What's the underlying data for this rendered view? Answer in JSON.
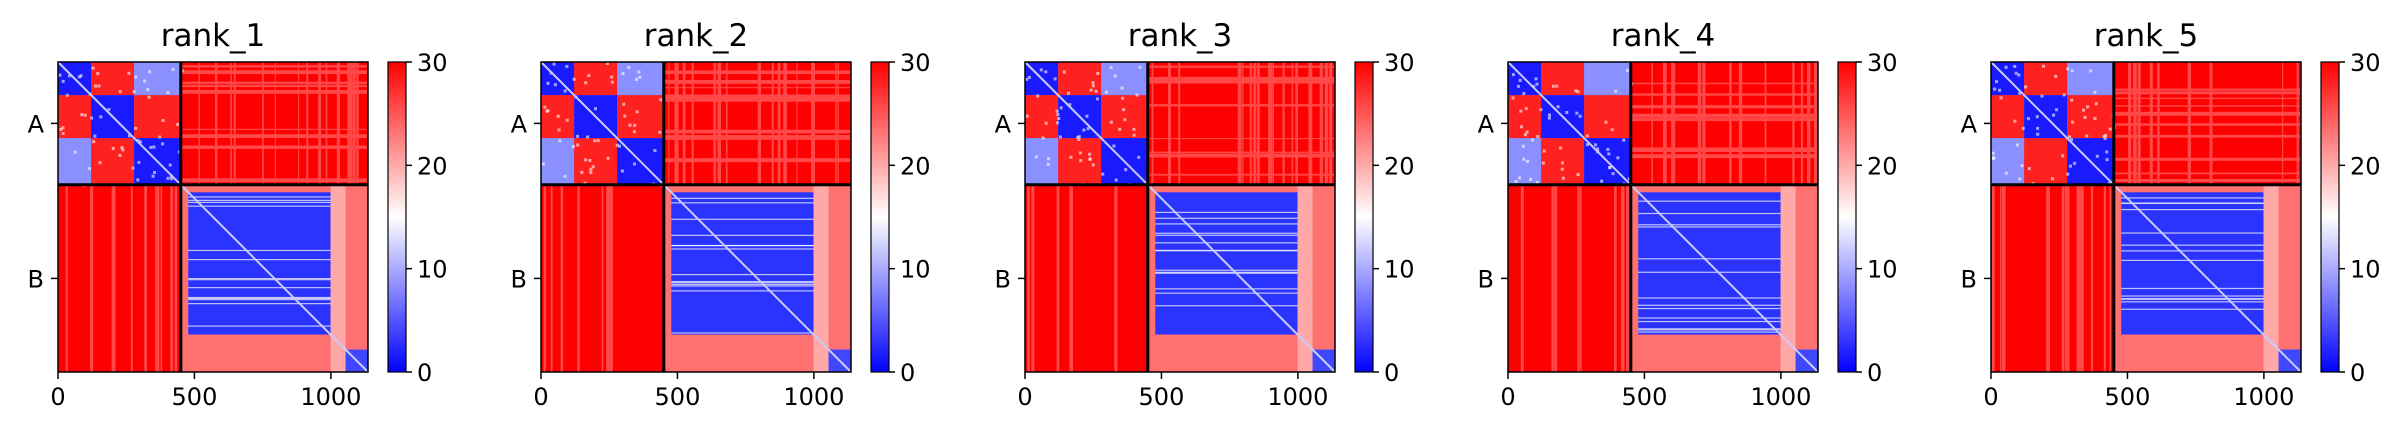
{
  "chart_data": {
    "type": "heatmap",
    "colormap": {
      "name": "bwr",
      "low": "#0000ff",
      "mid": "#ffffff",
      "high": "#ff0000"
    },
    "colorbar": {
      "vmin": 0,
      "vmax": 30,
      "ticks": [
        "0",
        "10",
        "20",
        "30"
      ]
    },
    "x_axis": {
      "range": [
        0,
        1136
      ],
      "ticks": [
        0,
        500,
        1000
      ],
      "tick_labels": [
        "0",
        "500",
        "1000"
      ]
    },
    "chains": [
      {
        "name": "A",
        "start": 0,
        "end": 450
      },
      {
        "name": "B",
        "start": 450,
        "end": 1136
      }
    ],
    "panels": [
      {
        "title": "rank_1"
      },
      {
        "title": "rank_2"
      },
      {
        "title": "rank_3"
      },
      {
        "title": "rank_4"
      },
      {
        "title": "rank_5"
      }
    ]
  }
}
